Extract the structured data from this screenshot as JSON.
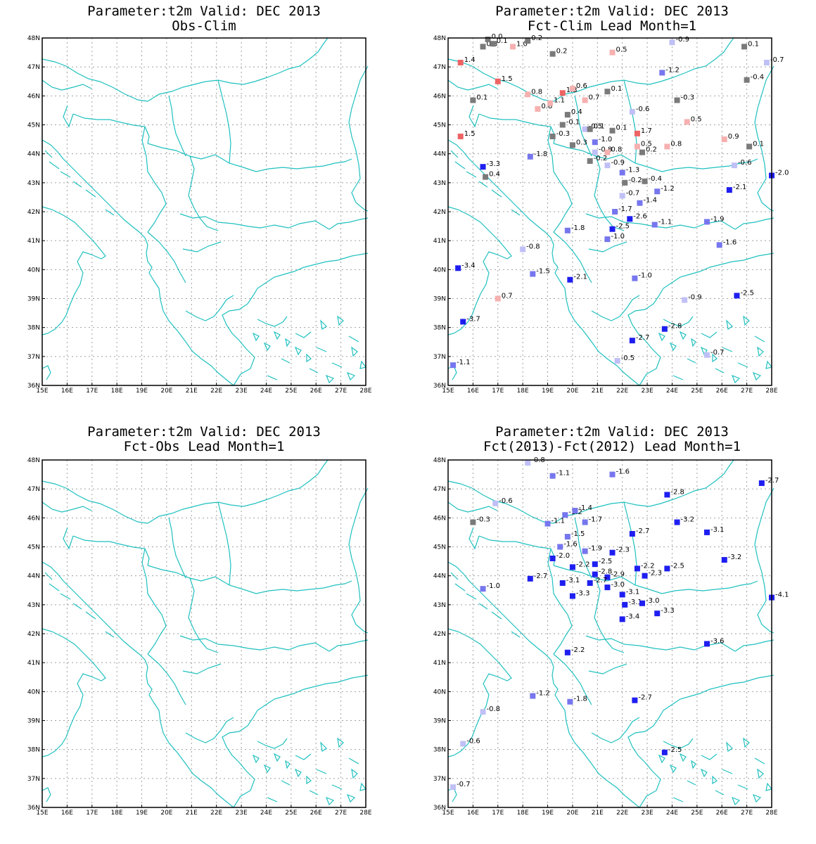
{
  "colors": {
    "coast": "#20c0c0",
    "grid": "#a0a0a0",
    "frame": "#000000"
  },
  "axes": {
    "lon_labels": [
      "15E",
      "16E",
      "17E",
      "18E",
      "19E",
      "20E",
      "21E",
      "22E",
      "23E",
      "24E",
      "25E",
      "26E",
      "27E",
      "28E"
    ],
    "lat_labels": [
      "36N",
      "37N",
      "38N",
      "39N",
      "40N",
      "41N",
      "42N",
      "43N",
      "44N",
      "45N",
      "46N",
      "47N",
      "48N"
    ],
    "lon_range": [
      15,
      28
    ],
    "lat_range": [
      36,
      48
    ]
  },
  "color_scale": [
    {
      "max": -2.0,
      "color": "#1e1ef0"
    },
    {
      "max": -1.0,
      "color": "#7676ee"
    },
    {
      "max": -0.5,
      "color": "#c0c0f6"
    },
    {
      "max": 0.45,
      "color": "#7a7a7a"
    },
    {
      "max": 1.2,
      "color": "#f6b0b0"
    },
    {
      "max": 99,
      "color": "#ee6464"
    }
  ],
  "chart_data": [
    {
      "type": "map",
      "title_line1": "Parameter:t2m Valid: DEC 2013",
      "title_line2": "Obs-Clim",
      "stations": []
    },
    {
      "type": "map",
      "title_line1": "Parameter:t2m Valid: DEC 2013",
      "title_line2": "Fct-Clim Lead Month=1",
      "stations": [
        {
          "lon": 16.4,
          "lat": 47.7,
          "label": "0.3"
        },
        {
          "lon": 16.8,
          "lat": 47.8,
          "label": "0.1"
        },
        {
          "lon": 16.6,
          "lat": 47.95,
          "label": "0.0"
        },
        {
          "lon": 17.6,
          "lat": 47.7,
          "label": "1.0"
        },
        {
          "lon": 18.2,
          "lat": 47.9,
          "label": "0.2"
        },
        {
          "lon": 19.2,
          "lat": 47.45,
          "label": "0.2"
        },
        {
          "lon": 21.6,
          "lat": 47.5,
          "label": "0.5"
        },
        {
          "lon": 24.0,
          "lat": 47.85,
          "label": "-0.9"
        },
        {
          "lon": 26.9,
          "lat": 47.7,
          "label": "0.1"
        },
        {
          "lon": 27.8,
          "lat": 47.15,
          "label": "-0.7"
        },
        {
          "lon": 15.5,
          "lat": 47.15,
          "label": "1.4"
        },
        {
          "lon": 17.0,
          "lat": 46.5,
          "label": "1.5"
        },
        {
          "lon": 23.6,
          "lat": 46.8,
          "label": "-1.2"
        },
        {
          "lon": 27.0,
          "lat": 46.55,
          "label": "-0.4"
        },
        {
          "lon": 16.0,
          "lat": 45.85,
          "label": "0.1"
        },
        {
          "lon": 18.2,
          "lat": 46.05,
          "label": "0.8"
        },
        {
          "lon": 19.6,
          "lat": 46.1,
          "label": "1.3"
        },
        {
          "lon": 20.0,
          "lat": 46.25,
          "label": "0.6"
        },
        {
          "lon": 20.5,
          "lat": 45.85,
          "label": "0.7"
        },
        {
          "lon": 21.4,
          "lat": 46.15,
          "label": "0.1"
        },
        {
          "lon": 24.2,
          "lat": 45.85,
          "label": "-0.3"
        },
        {
          "lon": 18.6,
          "lat": 45.55,
          "label": "0.8"
        },
        {
          "lon": 19.1,
          "lat": 45.75,
          "label": "1.1"
        },
        {
          "lon": 19.8,
          "lat": 45.35,
          "label": "0.4"
        },
        {
          "lon": 22.4,
          "lat": 45.45,
          "label": "-0.6"
        },
        {
          "lon": 24.6,
          "lat": 45.1,
          "label": "0.5"
        },
        {
          "lon": 15.5,
          "lat": 44.6,
          "label": "1.5"
        },
        {
          "lon": 19.6,
          "lat": 45.0,
          "label": "-0.1"
        },
        {
          "lon": 20.5,
          "lat": 44.85,
          "label": "-0.5"
        },
        {
          "lon": 20.7,
          "lat": 44.85,
          "label": "0.1"
        },
        {
          "lon": 21.6,
          "lat": 44.8,
          "label": "0.1"
        },
        {
          "lon": 22.6,
          "lat": 44.7,
          "label": "1.7"
        },
        {
          "lon": 19.2,
          "lat": 44.6,
          "label": "-0.3"
        },
        {
          "lon": 20.9,
          "lat": 44.4,
          "label": "-1.0"
        },
        {
          "lon": 20.0,
          "lat": 44.3,
          "label": "0.3"
        },
        {
          "lon": 20.9,
          "lat": 44.05,
          "label": "-0.8"
        },
        {
          "lon": 21.4,
          "lat": 44.05,
          "label": "0.8"
        },
        {
          "lon": 22.6,
          "lat": 44.25,
          "label": "0.5"
        },
        {
          "lon": 22.8,
          "lat": 44.05,
          "label": "0.2"
        },
        {
          "lon": 23.8,
          "lat": 44.25,
          "label": "0.8"
        },
        {
          "lon": 26.1,
          "lat": 44.5,
          "label": "0.9"
        },
        {
          "lon": 27.1,
          "lat": 44.25,
          "label": "0.1"
        },
        {
          "lon": 18.3,
          "lat": 43.9,
          "label": "-1.8"
        },
        {
          "lon": 20.7,
          "lat": 43.75,
          "label": "-0.2"
        },
        {
          "lon": 21.4,
          "lat": 43.6,
          "label": "-0.9"
        },
        {
          "lon": 26.5,
          "lat": 43.6,
          "label": "-0.6"
        },
        {
          "lon": 16.4,
          "lat": 43.55,
          "label": "-3.3"
        },
        {
          "lon": 22.0,
          "lat": 43.35,
          "label": "-1.3"
        },
        {
          "lon": 16.5,
          "lat": 43.2,
          "label": "0.4"
        },
        {
          "lon": 22.1,
          "lat": 43.0,
          "label": "-0.2"
        },
        {
          "lon": 22.9,
          "lat": 43.05,
          "label": "-0.4"
        },
        {
          "lon": 28.0,
          "lat": 43.25,
          "label": "-2.0"
        },
        {
          "lon": 23.4,
          "lat": 42.7,
          "label": "-1.2"
        },
        {
          "lon": 26.3,
          "lat": 42.75,
          "label": "-2.1"
        },
        {
          "lon": 22.0,
          "lat": 42.55,
          "label": "-0.7"
        },
        {
          "lon": 22.7,
          "lat": 42.3,
          "label": "-1.4"
        },
        {
          "lon": 21.7,
          "lat": 42.0,
          "label": "-1.7"
        },
        {
          "lon": 22.3,
          "lat": 41.75,
          "label": "-2.6"
        },
        {
          "lon": 25.4,
          "lat": 41.65,
          "label": "-1.9"
        },
        {
          "lon": 21.6,
          "lat": 41.4,
          "label": "-2.5"
        },
        {
          "lon": 23.3,
          "lat": 41.55,
          "label": "-1.1"
        },
        {
          "lon": 19.8,
          "lat": 41.35,
          "label": "-1.8"
        },
        {
          "lon": 21.4,
          "lat": 41.05,
          "label": "-1.0"
        },
        {
          "lon": 25.9,
          "lat": 40.85,
          "label": "-1.6"
        },
        {
          "lon": 18.0,
          "lat": 40.7,
          "label": "-0.8"
        },
        {
          "lon": 15.4,
          "lat": 40.05,
          "label": "-3.4"
        },
        {
          "lon": 18.4,
          "lat": 39.85,
          "label": "-1.5"
        },
        {
          "lon": 19.9,
          "lat": 39.65,
          "label": "-2.1"
        },
        {
          "lon": 22.5,
          "lat": 39.7,
          "label": "-1.0"
        },
        {
          "lon": 17.0,
          "lat": 39.0,
          "label": "0.7"
        },
        {
          "lon": 24.5,
          "lat": 38.95,
          "label": "-0.9"
        },
        {
          "lon": 26.6,
          "lat": 39.1,
          "label": "-2.5"
        },
        {
          "lon": 15.6,
          "lat": 38.2,
          "label": "-3.7"
        },
        {
          "lon": 23.7,
          "lat": 37.95,
          "label": "-2.8"
        },
        {
          "lon": 22.4,
          "lat": 37.55,
          "label": "-2.7"
        },
        {
          "lon": 25.4,
          "lat": 37.05,
          "label": "-0.7"
        },
        {
          "lon": 15.2,
          "lat": 36.7,
          "label": "-1.1"
        },
        {
          "lon": 21.8,
          "lat": 36.85,
          "label": "-0.5"
        }
      ]
    },
    {
      "type": "map",
      "title_line1": "Parameter:t2m Valid: DEC 2013",
      "title_line2": "Fct-Obs Lead Month=1",
      "stations": []
    },
    {
      "type": "map",
      "title_line1": "Parameter:t2m Valid: DEC 2013",
      "title_line2": "Fct(2013)-Fct(2012) Lead Month=1",
      "stations": [
        {
          "lon": 18.2,
          "lat": 47.9,
          "label": "-0.8"
        },
        {
          "lon": 19.2,
          "lat": 47.45,
          "label": "-1.1"
        },
        {
          "lon": 21.6,
          "lat": 47.5,
          "label": "-1.6"
        },
        {
          "lon": 23.8,
          "lat": 46.8,
          "label": "-2.8"
        },
        {
          "lon": 27.6,
          "lat": 47.2,
          "label": "-2.7"
        },
        {
          "lon": 16.9,
          "lat": 46.5,
          "label": "-0.6"
        },
        {
          "lon": 16.0,
          "lat": 45.85,
          "label": "-0.3"
        },
        {
          "lon": 19.0,
          "lat": 45.8,
          "label": "-1.1"
        },
        {
          "lon": 19.7,
          "lat": 46.1,
          "label": "-1.2"
        },
        {
          "lon": 20.1,
          "lat": 46.25,
          "label": "-1.4"
        },
        {
          "lon": 20.5,
          "lat": 45.85,
          "label": "-1.7"
        },
        {
          "lon": 24.2,
          "lat": 45.85,
          "label": "-3.2"
        },
        {
          "lon": 25.4,
          "lat": 45.5,
          "label": "-3.1"
        },
        {
          "lon": 22.4,
          "lat": 45.45,
          "label": "-2.7"
        },
        {
          "lon": 19.8,
          "lat": 45.35,
          "label": "-1.5"
        },
        {
          "lon": 19.5,
          "lat": 45.0,
          "label": "-1.6"
        },
        {
          "lon": 20.5,
          "lat": 44.85,
          "label": "-1.9"
        },
        {
          "lon": 21.6,
          "lat": 44.8,
          "label": "-2.3"
        },
        {
          "lon": 19.2,
          "lat": 44.6,
          "label": "-2.0"
        },
        {
          "lon": 26.1,
          "lat": 44.55,
          "label": "-3.2"
        },
        {
          "lon": 20.0,
          "lat": 44.3,
          "label": "-2.2"
        },
        {
          "lon": 20.9,
          "lat": 44.4,
          "label": "-2.5"
        },
        {
          "lon": 22.6,
          "lat": 44.25,
          "label": "-2.2"
        },
        {
          "lon": 23.8,
          "lat": 44.25,
          "label": "-2.5"
        },
        {
          "lon": 20.9,
          "lat": 44.05,
          "label": "-2.8"
        },
        {
          "lon": 21.4,
          "lat": 43.95,
          "label": "-2.9"
        },
        {
          "lon": 22.9,
          "lat": 44.0,
          "label": "-2.3"
        },
        {
          "lon": 18.3,
          "lat": 43.9,
          "label": "-2.7"
        },
        {
          "lon": 19.6,
          "lat": 43.75,
          "label": "-3.1"
        },
        {
          "lon": 20.7,
          "lat": 43.75,
          "label": "-2.7"
        },
        {
          "lon": 21.4,
          "lat": 43.6,
          "label": "-3.0"
        },
        {
          "lon": 16.4,
          "lat": 43.55,
          "label": "-1.0"
        },
        {
          "lon": 22.0,
          "lat": 43.35,
          "label": "-3.1"
        },
        {
          "lon": 20.0,
          "lat": 43.3,
          "label": "-3.3"
        },
        {
          "lon": 22.1,
          "lat": 43.0,
          "label": "-3.1"
        },
        {
          "lon": 22.8,
          "lat": 43.05,
          "label": "-3.0"
        },
        {
          "lon": 28.0,
          "lat": 43.25,
          "label": "-4.1"
        },
        {
          "lon": 23.4,
          "lat": 42.7,
          "label": "-3.3"
        },
        {
          "lon": 22.0,
          "lat": 42.5,
          "label": "-3.4"
        },
        {
          "lon": 25.4,
          "lat": 41.65,
          "label": "-3.6"
        },
        {
          "lon": 19.8,
          "lat": 41.35,
          "label": "-2.2"
        },
        {
          "lon": 18.4,
          "lat": 39.85,
          "label": "-1.2"
        },
        {
          "lon": 19.9,
          "lat": 39.65,
          "label": "-1.8"
        },
        {
          "lon": 22.5,
          "lat": 39.7,
          "label": "-2.7"
        },
        {
          "lon": 16.4,
          "lat": 39.3,
          "label": "-0.8"
        },
        {
          "lon": 15.6,
          "lat": 38.2,
          "label": "-0.6"
        },
        {
          "lon": 23.7,
          "lat": 37.9,
          "label": "-2.5"
        },
        {
          "lon": 15.2,
          "lat": 36.7,
          "label": "-0.7"
        }
      ]
    }
  ]
}
